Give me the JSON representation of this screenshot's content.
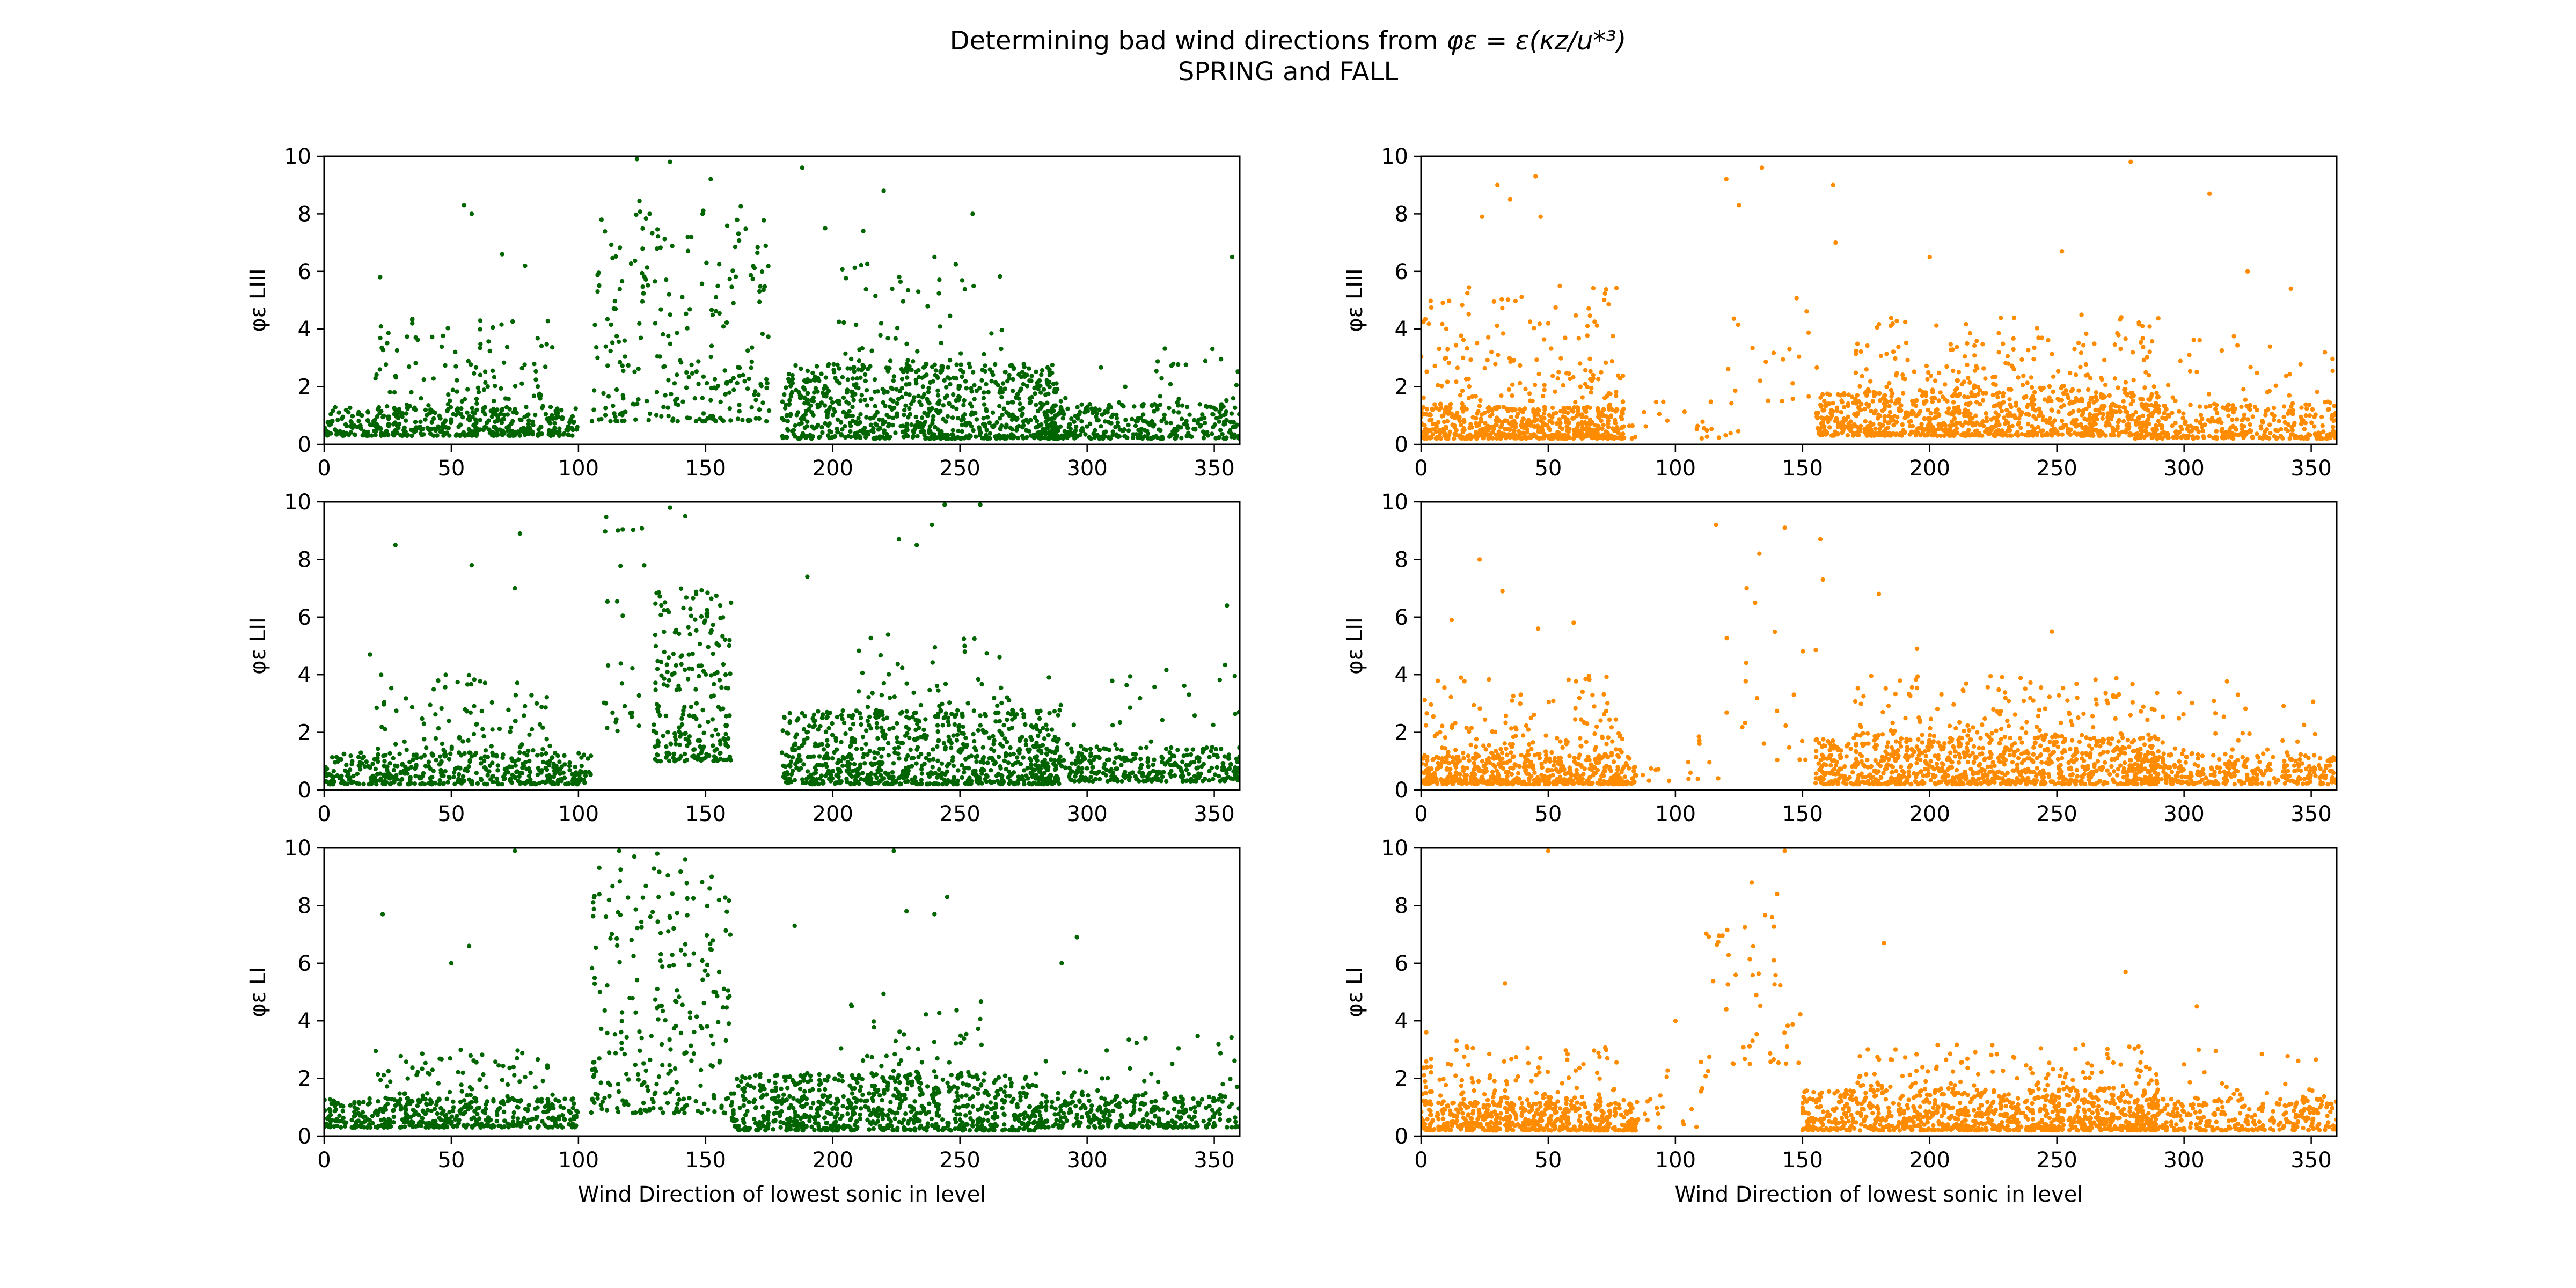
{
  "figure": {
    "title_line1_prefix": "Determining bad wind directions from ",
    "title_line1_math": "φε = ε(κz/u*³)",
    "title_line2": "SPRING and FALL",
    "colors": {
      "spring": "#006400",
      "fall": "#ff8c00"
    }
  },
  "chart_data": [
    {
      "type": "scatter",
      "name": "spring-LIII",
      "season": "SPRING",
      "color": "#006400",
      "ylabel": "φε LIII",
      "xlabel": "",
      "xlim": [
        0,
        360
      ],
      "ylim": [
        0,
        10
      ],
      "xticks": [
        "0",
        "50",
        "100",
        "150",
        "200",
        "250",
        "300",
        "350"
      ],
      "yticks": [
        "0",
        "2",
        "4",
        "6",
        "8",
        "10"
      ],
      "clusters": [
        {
          "x": [
            0,
            100
          ],
          "y": [
            0.3,
            1.3
          ],
          "n": 420
        },
        {
          "x": [
            20,
            90
          ],
          "y": [
            1.2,
            4.5
          ],
          "n": 110
        },
        {
          "x": [
            105,
            175
          ],
          "y": [
            0.8,
            8.5
          ],
          "n": 260
        },
        {
          "x": [
            180,
            290
          ],
          "y": [
            0.2,
            2.8
          ],
          "n": 780
        },
        {
          "x": [
            200,
            270
          ],
          "y": [
            2.5,
            6.5
          ],
          "n": 60
        },
        {
          "x": [
            280,
            360
          ],
          "y": [
            0.2,
            1.4
          ],
          "n": 320
        },
        {
          "x": [
            280,
            360
          ],
          "y": [
            1.3,
            3.5
          ],
          "n": 35
        }
      ],
      "points": [
        [
          123,
          9.9
        ],
        [
          136,
          9.8
        ],
        [
          152,
          9.2
        ],
        [
          188,
          9.6
        ],
        [
          220,
          8.8
        ],
        [
          55,
          8.3
        ],
        [
          58,
          8.0
        ],
        [
          255,
          8.0
        ],
        [
          128,
          8.0
        ],
        [
          357,
          6.5
        ],
        [
          197,
          7.5
        ],
        [
          212,
          7.4
        ],
        [
          70,
          6.6
        ],
        [
          79,
          6.2
        ],
        [
          22,
          5.8
        ],
        [
          240,
          6.5
        ]
      ]
    },
    {
      "type": "scatter",
      "name": "spring-LII",
      "season": "SPRING",
      "color": "#006400",
      "ylabel": "φε LII",
      "xlabel": "",
      "xlim": [
        0,
        360
      ],
      "ylim": [
        0,
        10
      ],
      "xticks": [
        "0",
        "50",
        "100",
        "150",
        "200",
        "250",
        "300",
        "350"
      ],
      "yticks": [
        "0",
        "2",
        "4",
        "6",
        "8",
        "10"
      ],
      "clusters": [
        {
          "x": [
            0,
            105
          ],
          "y": [
            0.2,
            1.3
          ],
          "n": 430
        },
        {
          "x": [
            20,
            90
          ],
          "y": [
            1.2,
            4.0
          ],
          "n": 100
        },
        {
          "x": [
            130,
            160
          ],
          "y": [
            1.0,
            7.0
          ],
          "n": 230
        },
        {
          "x": [
            110,
            130
          ],
          "y": [
            2.0,
            9.5
          ],
          "n": 30
        },
        {
          "x": [
            180,
            290
          ],
          "y": [
            0.2,
            2.8
          ],
          "n": 780
        },
        {
          "x": [
            210,
            270
          ],
          "y": [
            2.5,
            5.5
          ],
          "n": 60
        },
        {
          "x": [
            280,
            360
          ],
          "y": [
            0.3,
            1.5
          ],
          "n": 320
        },
        {
          "x": [
            280,
            360
          ],
          "y": [
            1.4,
            4.5
          ],
          "n": 35
        }
      ],
      "points": [
        [
          136,
          9.8
        ],
        [
          142,
          9.5
        ],
        [
          226,
          8.7
        ],
        [
          233,
          8.5
        ],
        [
          239,
          9.2
        ],
        [
          244,
          9.9
        ],
        [
          258,
          9.9
        ],
        [
          77,
          8.9
        ],
        [
          28,
          8.5
        ],
        [
          58,
          7.8
        ],
        [
          75,
          7.0
        ],
        [
          190,
          7.4
        ],
        [
          355,
          6.4
        ],
        [
          18,
          4.7
        ],
        [
          160,
          6.5
        ]
      ]
    },
    {
      "type": "scatter",
      "name": "spring-LI",
      "season": "SPRING",
      "color": "#006400",
      "ylabel": "φε LI",
      "xlabel": "Wind Direction of lowest sonic in level",
      "xlim": [
        0,
        360
      ],
      "ylim": [
        0,
        10
      ],
      "xticks": [
        "0",
        "50",
        "100",
        "150",
        "200",
        "250",
        "300",
        "350"
      ],
      "yticks": [
        "0",
        "2",
        "4",
        "6",
        "8",
        "10"
      ],
      "clusters": [
        {
          "x": [
            0,
            100
          ],
          "y": [
            0.3,
            1.3
          ],
          "n": 420
        },
        {
          "x": [
            20,
            90
          ],
          "y": [
            1.2,
            3.0
          ],
          "n": 90
        },
        {
          "x": [
            105,
            160
          ],
          "y": [
            0.8,
            9.5
          ],
          "n": 260
        },
        {
          "x": [
            160,
            280
          ],
          "y": [
            0.2,
            2.2
          ],
          "n": 760
        },
        {
          "x": [
            200,
            260
          ],
          "y": [
            2.0,
            5.0
          ],
          "n": 55
        },
        {
          "x": [
            280,
            360
          ],
          "y": [
            0.3,
            1.5
          ],
          "n": 320
        },
        {
          "x": [
            280,
            360
          ],
          "y": [
            1.4,
            3.5
          ],
          "n": 30
        }
      ],
      "points": [
        [
          116,
          9.9
        ],
        [
          122,
          9.7
        ],
        [
          131,
          9.8
        ],
        [
          142,
          9.6
        ],
        [
          75,
          9.9
        ],
        [
          23,
          7.7
        ],
        [
          185,
          7.3
        ],
        [
          224,
          9.9
        ],
        [
          229,
          7.8
        ],
        [
          240,
          7.7
        ],
        [
          245,
          8.3
        ],
        [
          290,
          6.0
        ],
        [
          296,
          6.9
        ],
        [
          50,
          6.0
        ],
        [
          57,
          6.6
        ]
      ]
    },
    {
      "type": "scatter",
      "name": "fall-LIII",
      "season": "FALL",
      "color": "#ff8c00",
      "ylabel": "φε LIII",
      "xlabel": "",
      "xlim": [
        0,
        360
      ],
      "ylim": [
        0,
        10
      ],
      "xticks": [
        "0",
        "50",
        "100",
        "150",
        "200",
        "250",
        "300",
        "350"
      ],
      "yticks": [
        "0",
        "2",
        "4",
        "6",
        "8",
        "10"
      ],
      "clusters": [
        {
          "x": [
            0,
            80
          ],
          "y": [
            0.2,
            1.3
          ],
          "n": 560
        },
        {
          "x": [
            0,
            80
          ],
          "y": [
            1.2,
            5.5
          ],
          "n": 180
        },
        {
          "x": [
            80,
            125
          ],
          "y": [
            0.2,
            1.5
          ],
          "n": 25
        },
        {
          "x": [
            120,
            158
          ],
          "y": [
            1.5,
            5.5
          ],
          "n": 20
        },
        {
          "x": [
            155,
            290
          ],
          "y": [
            0.3,
            1.8
          ],
          "n": 900
        },
        {
          "x": [
            170,
            290
          ],
          "y": [
            1.8,
            4.5
          ],
          "n": 180
        },
        {
          "x": [
            280,
            360
          ],
          "y": [
            0.2,
            1.4
          ],
          "n": 330
        },
        {
          "x": [
            280,
            360
          ],
          "y": [
            1.3,
            4.0
          ],
          "n": 45
        }
      ],
      "points": [
        [
          30,
          9.0
        ],
        [
          45,
          9.3
        ],
        [
          35,
          8.5
        ],
        [
          120,
          9.2
        ],
        [
          125,
          8.3
        ],
        [
          134,
          9.6
        ],
        [
          162,
          9.0
        ],
        [
          163,
          7.0
        ],
        [
          279,
          9.8
        ],
        [
          310,
          8.7
        ],
        [
          47,
          7.9
        ],
        [
          24,
          7.9
        ],
        [
          325,
          6.0
        ],
        [
          200,
          6.5
        ],
        [
          252,
          6.7
        ],
        [
          342,
          5.4
        ]
      ]
    },
    {
      "type": "scatter",
      "name": "fall-LII",
      "season": "FALL",
      "color": "#ff8c00",
      "ylabel": "φε LII",
      "xlabel": "",
      "xlim": [
        0,
        360
      ],
      "ylim": [
        0,
        10
      ],
      "xticks": [
        "0",
        "50",
        "100",
        "150",
        "200",
        "250",
        "300",
        "350"
      ],
      "yticks": [
        "0",
        "2",
        "4",
        "6",
        "8",
        "10"
      ],
      "clusters": [
        {
          "x": [
            0,
            85
          ],
          "y": [
            0.2,
            1.2
          ],
          "n": 540
        },
        {
          "x": [
            0,
            80
          ],
          "y": [
            1.2,
            4.0
          ],
          "n": 140
        },
        {
          "x": [
            85,
            120
          ],
          "y": [
            0.3,
            2.0
          ],
          "n": 15
        },
        {
          "x": [
            120,
            158
          ],
          "y": [
            1.0,
            6.5
          ],
          "n": 20
        },
        {
          "x": [
            155,
            290
          ],
          "y": [
            0.2,
            1.8
          ],
          "n": 880
        },
        {
          "x": [
            170,
            290
          ],
          "y": [
            1.8,
            4.0
          ],
          "n": 150
        },
        {
          "x": [
            280,
            360
          ],
          "y": [
            0.2,
            1.3
          ],
          "n": 330
        },
        {
          "x": [
            280,
            360
          ],
          "y": [
            1.2,
            3.8
          ],
          "n": 40
        }
      ],
      "points": [
        [
          116,
          9.2
        ],
        [
          143,
          9.1
        ],
        [
          133,
          8.2
        ],
        [
          157,
          8.7
        ],
        [
          23,
          8.0
        ],
        [
          32,
          6.9
        ],
        [
          158,
          7.3
        ],
        [
          180,
          6.8
        ],
        [
          128,
          7.0
        ],
        [
          12,
          5.9
        ],
        [
          195,
          4.9
        ],
        [
          46,
          5.6
        ],
        [
          60,
          5.8
        ],
        [
          248,
          5.5
        ]
      ]
    },
    {
      "type": "scatter",
      "name": "fall-LI",
      "season": "FALL",
      "color": "#ff8c00",
      "ylabel": "φε LI",
      "xlabel": "Wind Direction of lowest sonic in level",
      "xlim": [
        0,
        360
      ],
      "ylim": [
        0,
        10
      ],
      "xticks": [
        "0",
        "50",
        "100",
        "150",
        "200",
        "250",
        "300",
        "350"
      ],
      "yticks": [
        "0",
        "2",
        "4",
        "6",
        "8",
        "10"
      ],
      "clusters": [
        {
          "x": [
            0,
            85
          ],
          "y": [
            0.2,
            1.2
          ],
          "n": 540
        },
        {
          "x": [
            0,
            80
          ],
          "y": [
            1.2,
            3.2
          ],
          "n": 110
        },
        {
          "x": [
            85,
            115
          ],
          "y": [
            0.3,
            2.5
          ],
          "n": 20
        },
        {
          "x": [
            110,
            150
          ],
          "y": [
            2.5,
            8.5
          ],
          "n": 45
        },
        {
          "x": [
            150,
            290
          ],
          "y": [
            0.2,
            1.6
          ],
          "n": 880
        },
        {
          "x": [
            170,
            290
          ],
          "y": [
            1.6,
            3.2
          ],
          "n": 120
        },
        {
          "x": [
            280,
            360
          ],
          "y": [
            0.2,
            1.3
          ],
          "n": 330
        },
        {
          "x": [
            280,
            360
          ],
          "y": [
            1.3,
            3.0
          ],
          "n": 30
        }
      ],
      "points": [
        [
          50,
          9.9
        ],
        [
          143,
          9.9
        ],
        [
          130,
          8.8
        ],
        [
          140,
          8.4
        ],
        [
          182,
          6.7
        ],
        [
          277,
          5.7
        ],
        [
          138,
          7.6
        ],
        [
          33,
          5.3
        ],
        [
          305,
          4.5
        ],
        [
          2,
          3.6
        ],
        [
          14,
          3.3
        ],
        [
          120,
          4.4
        ],
        [
          100,
          4.0
        ]
      ]
    }
  ]
}
